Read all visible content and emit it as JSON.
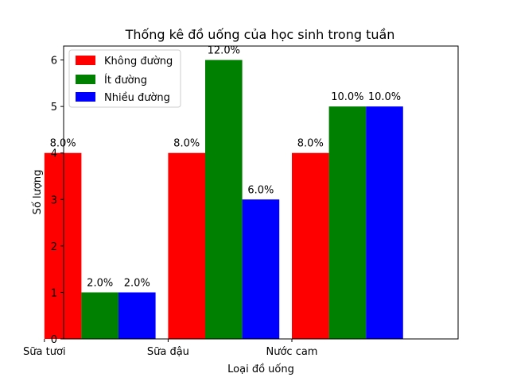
{
  "chart_data": {
    "type": "bar",
    "title": "Thống kê đồ uống của học sinh trong tuần",
    "xlabel": "Loại đồ uống",
    "ylabel": "Số lượng",
    "categories": [
      "Sữa tươi",
      "Sữa đậu",
      "Nước cam"
    ],
    "series": [
      {
        "name": "Không đường",
        "color": "#ff0000",
        "values": [
          4,
          4,
          4
        ],
        "labels": [
          "8.0%",
          "8.0%",
          "8.0%"
        ]
      },
      {
        "name": "Ít đường",
        "color": "#008000",
        "values": [
          1,
          6,
          5
        ],
        "labels": [
          "2.0%",
          "12.0%",
          "10.0%"
        ]
      },
      {
        "name": "Nhiều đường",
        "color": "#0000ff",
        "values": [
          1,
          3,
          5
        ],
        "labels": [
          "2.0%",
          "6.0%",
          "10.0%"
        ]
      }
    ],
    "ylim": [
      0,
      6.3
    ],
    "yticks": [
      0,
      1,
      2,
      3,
      4,
      5,
      6
    ],
    "grid": false,
    "legend_position": "top-left"
  }
}
